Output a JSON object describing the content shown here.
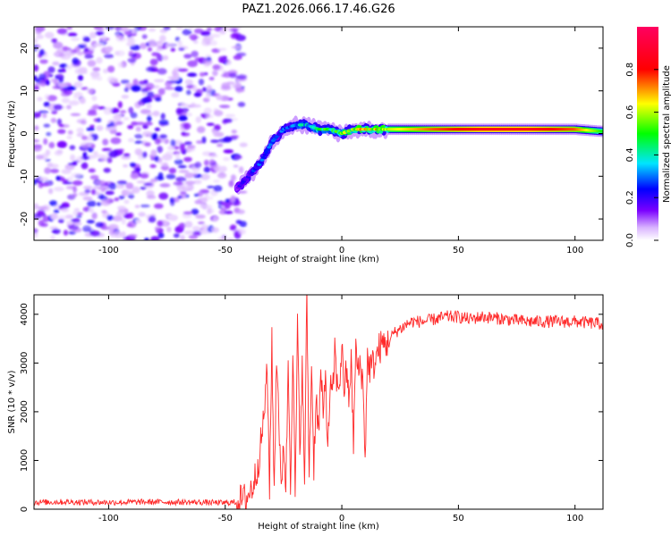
{
  "page_title": "PAZ1.2026.066.17.46.G26",
  "chart_data": [
    {
      "type": "heatmap",
      "title": "PAZ1.2026.066.17.46.G26",
      "xlabel": "Height of straight line (km)",
      "ylabel": "Frequency (Hz)",
      "xlim": [
        -132,
        112
      ],
      "ylim": [
        -25,
        25
      ],
      "xticks": [
        -100,
        -50,
        0,
        50,
        100
      ],
      "yticks": [
        -20,
        -10,
        0,
        10,
        20
      ],
      "xtick_labels": [
        "-100",
        "-50",
        "0",
        "50",
        "100"
      ],
      "ytick_labels": [
        "-20",
        "-10",
        "0",
        "10",
        "20"
      ],
      "colorbar": {
        "label": "Normalized spectral amplitude",
        "range": [
          0,
          1
        ],
        "ticks": [
          0.0,
          0.2,
          0.4,
          0.6,
          0.8
        ],
        "tick_labels": [
          "0.0",
          "0.2",
          "0.4",
          "0.6",
          "0.8"
        ],
        "colors": [
          "#ffffff",
          "#d9b3ff",
          "#7a00ff",
          "#0000ff",
          "#00e5ff",
          "#00ff00",
          "#ffff00",
          "#ff0000",
          "#ff0060"
        ]
      },
      "ridge": {
        "description_points_km": [
          -45,
          -40,
          -35,
          -30,
          -25,
          -20,
          -15,
          -10,
          -5,
          0,
          5,
          10,
          20,
          40,
          60,
          80,
          100,
          112
        ],
        "frequency_hz": [
          -13,
          -10,
          -7,
          -2,
          1,
          2,
          2,
          1,
          1,
          0,
          1,
          1,
          1,
          1,
          1,
          1,
          1,
          0.5
        ],
        "amplitude": [
          0.15,
          0.2,
          0.25,
          0.25,
          0.25,
          0.3,
          0.35,
          0.4,
          0.45,
          0.5,
          0.55,
          0.6,
          0.6,
          0.75,
          0.85,
          0.85,
          0.75,
          0.5
        ]
      },
      "noise_region_km": [
        -132,
        -45
      ]
    },
    {
      "type": "line",
      "title": "",
      "xlabel": "Height of straight line (km)",
      "ylabel": "SNR (10 * v/v)",
      "xlim": [
        -132,
        112
      ],
      "ylim": [
        0,
        4400
      ],
      "xticks": [
        -100,
        -50,
        0,
        50,
        100
      ],
      "yticks": [
        0,
        1000,
        2000,
        3000,
        4000
      ],
      "xtick_labels": [
        "-100",
        "-50",
        "0",
        "50",
        "100"
      ],
      "ytick_labels": [
        "0",
        "1000",
        "2000",
        "3000",
        "4000"
      ],
      "series": [
        {
          "name": "SNR",
          "color": "#ff2a2a",
          "x": [
            -132,
            -120,
            -100,
            -80,
            -60,
            -50,
            -45,
            -42,
            -40,
            -38,
            -36,
            -34,
            -32,
            -31,
            -30,
            -29,
            -28,
            -27,
            -26,
            -25,
            -24,
            -23,
            -22,
            -21,
            -20,
            -19,
            -18,
            -17,
            -16,
            -15,
            -14,
            -13,
            -12,
            -11,
            -10,
            -9,
            -8,
            -7,
            -6,
            -5,
            -4,
            -3,
            -2,
            -1,
            0,
            1,
            2,
            3,
            4,
            5,
            6,
            7,
            8,
            9,
            10,
            11,
            12,
            14,
            16,
            18,
            20,
            22,
            25,
            28,
            30,
            35,
            40,
            45,
            50,
            55,
            60,
            70,
            80,
            90,
            100,
            112
          ],
          "y": [
            140,
            150,
            140,
            150,
            140,
            130,
            150,
            200,
            300,
            500,
            900,
            1600,
            2800,
            500,
            3400,
            300,
            3200,
            2000,
            200,
            1500,
            400,
            3000,
            600,
            3300,
            200,
            3700,
            1300,
            2900,
            500,
            4350,
            700,
            3000,
            900,
            2400,
            1500,
            2800,
            1800,
            2900,
            1100,
            2600,
            2200,
            3300,
            2500,
            2600,
            3300,
            2500,
            2800,
            2300,
            3000,
            1400,
            3300,
            2800,
            3000,
            2600,
            1100,
            3100,
            2900,
            3000,
            3300,
            3400,
            3400,
            3600,
            3700,
            3800,
            3850,
            3850,
            3900,
            3950,
            3950,
            3900,
            3950,
            3900,
            3850,
            3850,
            3850,
            3800
          ]
        }
      ]
    }
  ]
}
